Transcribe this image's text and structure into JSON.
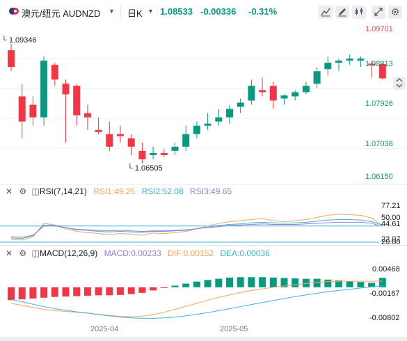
{
  "header": {
    "symbol_label": "澳元/纽元 AUDNZD",
    "interval": "日K",
    "last_price": "1.08533",
    "change": "-0.00336",
    "change_pct": "-0.31%",
    "colors": {
      "up": "#089981",
      "down": "#f23645",
      "accent": "#2962ff"
    },
    "toolbar_icons": [
      "chart-type-icon",
      "draw-icon",
      "candles-icon",
      "fullscreen-icon",
      "settings-icon"
    ]
  },
  "price_axis": {
    "labels": [
      {
        "text": "1.09701",
        "color": "#f23645"
      },
      {
        "text": "1.08813",
        "color": "#089981"
      },
      {
        "text": "1.07926",
        "color": "#089981"
      },
      {
        "text": "1.07038",
        "color": "#089981"
      },
      {
        "text": "1.06150",
        "color": "#089981"
      }
    ],
    "high_marker": "1.09346",
    "low_marker": "1.06505"
  },
  "rsi": {
    "title": "RSI(7,14,21)",
    "rsi1": "RSI1:49.25",
    "rsi2": "RSI2:52.08",
    "rsi3": "RSI3:49.65",
    "colors": {
      "rsi1": "#f7a35c",
      "rsi2": "#3bb3d7",
      "rsi3": "#9c7bd1"
    },
    "axis_labels": [
      "77.21",
      "50.00",
      "44.61",
      "22.07",
      "20.00"
    ]
  },
  "macd": {
    "title": "MACD(12,26,9)",
    "macd_val": "MACD:0.00233",
    "dif_val": "DIF:0.00152",
    "dea_val": "DEA:0.00036",
    "colors": {
      "macd": "#9c7bd1",
      "dif": "#f7a35c",
      "dea": "#3bb3d7"
    },
    "axis_labels": [
      "0.00468",
      "-0.00167",
      "-0.00802"
    ]
  },
  "x_axis": [
    "2025-04",
    "2025-05"
  ],
  "chart_data": {
    "type": "candlestick",
    "symbol": "AUDNZD",
    "interval": "1D",
    "candles": [
      {
        "o": 1.092,
        "h": 1.0935,
        "l": 1.087,
        "c": 1.088
      },
      {
        "o": 1.081,
        "h": 1.084,
        "l": 1.071,
        "c": 1.075
      },
      {
        "o": 1.079,
        "h": 1.081,
        "l": 1.074,
        "c": 1.076
      },
      {
        "o": 1.076,
        "h": 1.0905,
        "l": 1.074,
        "c": 1.0895
      },
      {
        "o": 1.0885,
        "h": 1.089,
        "l": 1.0835,
        "c": 1.085
      },
      {
        "o": 1.084,
        "h": 1.085,
        "l": 1.07,
        "c": 1.0815
      },
      {
        "o": 1.0835,
        "h": 1.084,
        "l": 1.074,
        "c": 1.0765
      },
      {
        "o": 1.077,
        "h": 1.079,
        "l": 1.073,
        "c": 1.076
      },
      {
        "o": 1.073,
        "h": 1.076,
        "l": 1.072,
        "c": 1.0725
      },
      {
        "o": 1.072,
        "h": 1.075,
        "l": 1.068,
        "c": 1.069
      },
      {
        "o": 1.072,
        "h": 1.074,
        "l": 1.07,
        "c": 1.0715
      },
      {
        "o": 1.071,
        "h": 1.072,
        "l": 1.067,
        "c": 1.069
      },
      {
        "o": 1.068,
        "h": 1.07,
        "l": 1.065,
        "c": 1.066
      },
      {
        "o": 1.067,
        "h": 1.069,
        "l": 1.066,
        "c": 1.0675
      },
      {
        "o": 1.0675,
        "h": 1.0685,
        "l": 1.0665,
        "c": 1.067
      },
      {
        "o": 1.068,
        "h": 1.07,
        "l": 1.067,
        "c": 1.069
      },
      {
        "o": 1.069,
        "h": 1.074,
        "l": 1.068,
        "c": 1.072
      },
      {
        "o": 1.072,
        "h": 1.075,
        "l": 1.071,
        "c": 1.074
      },
      {
        "o": 1.074,
        "h": 1.077,
        "l": 1.073,
        "c": 1.0745
      },
      {
        "o": 1.075,
        "h": 1.078,
        "l": 1.074,
        "c": 1.076
      },
      {
        "o": 1.076,
        "h": 1.079,
        "l": 1.0745,
        "c": 1.078
      },
      {
        "o": 1.0785,
        "h": 1.0805,
        "l": 1.077,
        "c": 1.0795
      },
      {
        "o": 1.08,
        "h": 1.085,
        "l": 1.079,
        "c": 1.0835
      },
      {
        "o": 1.0825,
        "h": 1.0855,
        "l": 1.081,
        "c": 1.082
      },
      {
        "o": 1.0835,
        "h": 1.0845,
        "l": 1.078,
        "c": 1.08
      },
      {
        "o": 1.0805,
        "h": 1.0815,
        "l": 1.079,
        "c": 1.0812
      },
      {
        "o": 1.081,
        "h": 1.0825,
        "l": 1.08,
        "c": 1.082
      },
      {
        "o": 1.082,
        "h": 1.0845,
        "l": 1.0815,
        "c": 1.0835
      },
      {
        "o": 1.084,
        "h": 1.088,
        "l": 1.083,
        "c": 1.087
      },
      {
        "o": 1.0875,
        "h": 1.0905,
        "l": 1.086,
        "c": 1.089
      },
      {
        "o": 1.089,
        "h": 1.09,
        "l": 1.087,
        "c": 1.0895
      },
      {
        "o": 1.0895,
        "h": 1.091,
        "l": 1.0885,
        "c": 1.09
      },
      {
        "o": 1.0895,
        "h": 1.0905,
        "l": 1.088,
        "c": 1.09
      },
      {
        "o": 1.0888,
        "h": 1.0895,
        "l": 1.0855,
        "c": 1.0885
      },
      {
        "o": 1.0887,
        "h": 1.089,
        "l": 1.085,
        "c": 1.0853
      }
    ],
    "rsi1": [
      25,
      24,
      30,
      55,
      52,
      45,
      40,
      38,
      36,
      34,
      36,
      35,
      33,
      37,
      36,
      38,
      40,
      45,
      50,
      55,
      58,
      60,
      62,
      64,
      60,
      58,
      60,
      62,
      66,
      70,
      72,
      71,
      70,
      65,
      49.25
    ],
    "rsi2": [
      28,
      27,
      32,
      52,
      51,
      47,
      43,
      42,
      40,
      39,
      40,
      39,
      38,
      40,
      40,
      41,
      42,
      45,
      48,
      51,
      53,
      54,
      56,
      57,
      56,
      55,
      56,
      57,
      59,
      61,
      62,
      62,
      61,
      58,
      52.08
    ],
    "rsi3": [
      30,
      29,
      33,
      50,
      50,
      47,
      44,
      43,
      42,
      41,
      42,
      41,
      40,
      41,
      41,
      42,
      43,
      45,
      47,
      49,
      51,
      52,
      53,
      54,
      53,
      53,
      53,
      54,
      55,
      56,
      57,
      57,
      57,
      55,
      49.65
    ],
    "macd_hist": [
      -0.0032,
      -0.003,
      -0.0028,
      -0.0026,
      -0.0024,
      -0.0023,
      -0.0022,
      -0.0021,
      -0.002,
      -0.002,
      -0.0019,
      -0.0017,
      -0.0014,
      -0.0008,
      -0.0002,
      0.0004,
      0.0009,
      0.0014,
      0.0018,
      0.0021,
      0.0024,
      0.0025,
      0.0025,
      0.0025,
      0.0024,
      0.0023,
      0.0022,
      0.0021,
      0.0021,
      0.0019,
      0.0017,
      0.0015,
      0.0013,
      0.0011,
      0.00233
    ],
    "dif": [
      -0.004,
      -0.0045,
      -0.005,
      -0.0055,
      -0.0058,
      -0.006,
      -0.0062,
      -0.0064,
      -0.0067,
      -0.007,
      -0.0072,
      -0.0073,
      -0.0072,
      -0.0068,
      -0.0062,
      -0.0055,
      -0.0047,
      -0.004,
      -0.0032,
      -0.0025,
      -0.0019,
      -0.0013,
      -0.0008,
      -0.0004,
      0.0,
      0.0003,
      0.0006,
      0.0009,
      0.0012,
      0.0014,
      0.0015,
      0.0015,
      0.0015,
      0.0015,
      0.00152
    ],
    "dea": [
      -0.003,
      -0.0036,
      -0.0042,
      -0.0048,
      -0.0053,
      -0.0057,
      -0.0061,
      -0.0064,
      -0.0068,
      -0.0071,
      -0.0074,
      -0.0076,
      -0.0077,
      -0.0077,
      -0.0076,
      -0.0074,
      -0.0071,
      -0.0067,
      -0.0063,
      -0.0058,
      -0.0053,
      -0.0048,
      -0.0043,
      -0.0038,
      -0.0033,
      -0.0028,
      -0.0023,
      -0.0019,
      -0.0015,
      -0.0011,
      -0.0008,
      -0.0005,
      -0.0002,
      0.0001,
      0.00036
    ],
    "ylim_price": [
      1.0615,
      1.097
    ],
    "ylim_rsi": [
      20,
      95
    ],
    "ylim_macd": [
      -0.0085,
      0.006
    ]
  }
}
